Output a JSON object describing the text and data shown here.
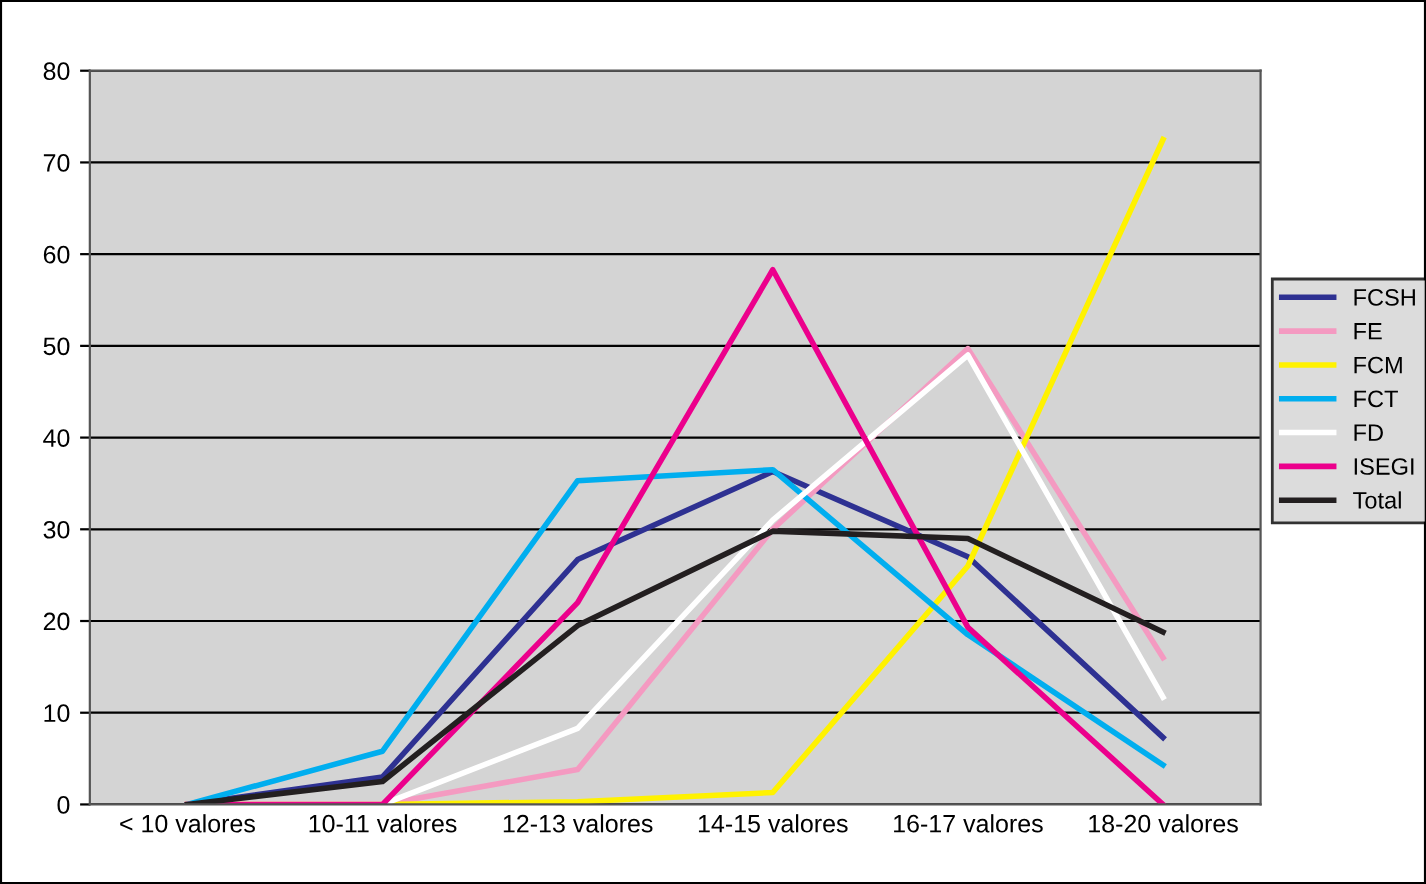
{
  "chart_data": {
    "type": "line",
    "categories": [
      "< 10 valores",
      "10-11 valores",
      "12-13 valores",
      "14-15 valores",
      "16-17 valores",
      "18-20 valores"
    ],
    "series": [
      {
        "name": "FCSH",
        "color": "#2e3192",
        "values": [
          0,
          3,
          26.7,
          36.3,
          27,
          7.3
        ]
      },
      {
        "name": "FE",
        "color": "#f49ac1",
        "values": [
          0,
          0,
          3.8,
          30,
          49.7,
          16
        ]
      },
      {
        "name": "FCM",
        "color": "#fff200",
        "values": [
          0,
          0,
          0.3,
          1.3,
          26,
          72.5
        ]
      },
      {
        "name": "FCT",
        "color": "#00aeef",
        "values": [
          0,
          5.8,
          35.3,
          36.5,
          18.5,
          4.3
        ]
      },
      {
        "name": "FD",
        "color": "#ffffff",
        "values": [
          0,
          0,
          8.3,
          31,
          49,
          11.7
        ]
      },
      {
        "name": "ISEGI",
        "color": "#ec008c",
        "values": [
          0,
          0,
          22,
          58.3,
          19.3,
          0
        ]
      },
      {
        "name": "Total",
        "color": "#231f20",
        "values": [
          0,
          2.5,
          19.5,
          29.8,
          29,
          18.8
        ]
      }
    ],
    "ylim": [
      0,
      80
    ],
    "yticks": [
      0,
      10,
      20,
      30,
      40,
      50,
      60,
      70,
      80
    ],
    "grid": "y",
    "legend": "right",
    "marker": "none",
    "line_style": "solid"
  }
}
